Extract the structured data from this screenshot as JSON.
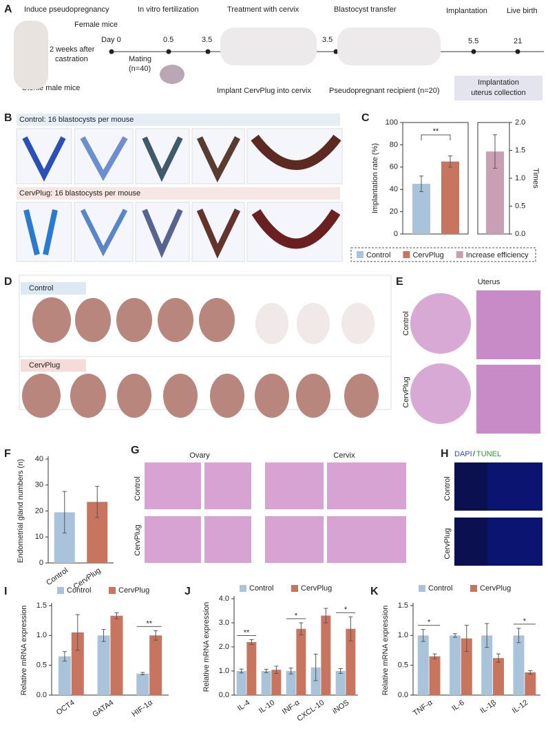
{
  "panel_labels": [
    "A",
    "B",
    "C",
    "D",
    "E",
    "F",
    "G",
    "H",
    "I",
    "J",
    "K"
  ],
  "panel_a": {
    "steps": [
      "Induce pseudopregnancy",
      "In vitro fertilization",
      "Treatment with cervix",
      "Blastocyst transfer",
      "Implantation",
      "Live birth"
    ],
    "female": "Female mice",
    "day": "Day 0",
    "castration": [
      "2 weeks after",
      "castration"
    ],
    "male": "Sterile male mice",
    "mating": [
      "Mating",
      "(n=40)"
    ],
    "days": [
      "0.5",
      "3.5",
      "3.5",
      "5.5",
      "21"
    ],
    "implant": "Implant CervPlug into cervix",
    "recipient": "Pseudopregnant recipient (n=20)",
    "collection": [
      "Implantation",
      "uterus collection"
    ]
  },
  "panel_b": {
    "control": "Control: 16 blastocysts per mouse",
    "cervplug": "CervPlug: 16 blastocysts per mouse"
  },
  "panel_d": {
    "control": "Control",
    "cervplug": "CervPlug"
  },
  "panel_e": {
    "title": "Uterus",
    "rows": [
      "Control",
      "CervPlug"
    ]
  },
  "panel_g": {
    "ovary": "Ovary",
    "cervix": "Cervix",
    "rows": [
      "Control",
      "CervPlug"
    ]
  },
  "panel_h": {
    "dapi": "DAPI",
    "sep": "/",
    "tunel": "TUNEL",
    "rows": [
      "Control",
      "CervPlug"
    ]
  },
  "chart_data": [
    {
      "type": "bar",
      "y_label": "Implantation rate (%)",
      "y2_label": "Times",
      "ylim": [
        0,
        100
      ],
      "yticks": [
        0,
        20,
        40,
        60,
        80,
        100
      ],
      "y2lim": [
        0,
        2
      ],
      "y2ticks": [
        {
          "value": 0,
          "label": "0.0"
        },
        {
          "value": 0.5,
          "label": "0.5"
        },
        {
          "value": 1,
          "label": "1.0"
        },
        {
          "value": 1.5,
          "label": "1.5"
        },
        {
          "value": 2,
          "label": "2.0"
        }
      ],
      "series": [
        {
          "name": "Control",
          "color": "#a9c4da",
          "values": [
            45
          ],
          "errors": [
            7
          ]
        },
        {
          "name": "CervPlug",
          "color": "#c87560",
          "values": [
            65
          ],
          "errors": [
            5
          ]
        },
        {
          "name": "Increase efficiency",
          "color": "#c9a0b3",
          "values": [
            1.48
          ],
          "errors": [
            0.3
          ],
          "axis": "y2"
        }
      ],
      "significance": [
        {
          "label": "**",
          "series": [
            0,
            1
          ]
        }
      ]
    },
    {
      "type": "bar",
      "y_label": "Endometrial gland numbers (n)",
      "categories": [
        "Control",
        "CervPlug"
      ],
      "ylim": [
        0,
        40
      ],
      "yticks": [
        0,
        10,
        20,
        30,
        40
      ],
      "series": [
        {
          "colors": [
            "#a9c4da",
            "#c87560"
          ],
          "values": [
            19.5,
            23.5
          ],
          "errors": [
            8,
            6
          ]
        }
      ]
    },
    {
      "type": "bar",
      "y_label": "Relative mRNA expression",
      "categories": [
        "OCT4",
        "GATA4",
        "HIF-1α"
      ],
      "ylim": [
        0,
        1.5
      ],
      "yticks": [
        {
          "value": 0,
          "label": "0.0"
        },
        {
          "value": 0.5,
          "label": "0.5"
        },
        {
          "value": 1,
          "label": "1.0"
        },
        {
          "value": 1.5,
          "label": "1.5"
        }
      ],
      "series": [
        {
          "name": "Control",
          "color": "#a9c4da",
          "values": [
            0.65,
            1.0,
            0.36
          ],
          "errors": [
            0.08,
            0.1,
            0.02
          ]
        },
        {
          "name": "CervPlug",
          "color": "#c87560",
          "values": [
            1.05,
            1.33,
            1.0
          ],
          "errors": [
            0.3,
            0.05,
            0.08
          ]
        }
      ],
      "significance": [
        {
          "label": "**",
          "category": 2
        }
      ]
    },
    {
      "type": "bar",
      "y_label": "Relative mRNA expression",
      "categories": [
        "IL-4",
        "IL-10",
        "INF-α",
        "CXCL-10",
        "iNOS"
      ],
      "ylim": [
        0,
        4
      ],
      "yticks": [
        {
          "value": 0,
          "label": "0.0"
        },
        {
          "value": 1,
          "label": "1.0"
        },
        {
          "value": 2,
          "label": "2.0"
        },
        {
          "value": 3,
          "label": "3.0"
        },
        {
          "value": 4,
          "label": "4.0"
        }
      ],
      "series": [
        {
          "name": "Control",
          "color": "#a9c4da",
          "values": [
            1.0,
            1.0,
            1.0,
            1.15,
            1.0
          ],
          "errors": [
            0.08,
            0.07,
            0.12,
            0.55,
            0.1
          ]
        },
        {
          "name": "CervPlug",
          "color": "#c87560",
          "values": [
            2.2,
            1.05,
            2.75,
            3.3,
            2.75
          ],
          "errors": [
            0.1,
            0.15,
            0.25,
            0.3,
            0.5
          ]
        }
      ],
      "significance": [
        {
          "label": "**",
          "category": 0
        },
        {
          "label": "*",
          "category": 2
        },
        {
          "label": "*",
          "category": 4
        }
      ]
    },
    {
      "type": "bar",
      "y_label": "Relative mRNA expression",
      "categories": [
        "TNF-α",
        "IL-6",
        "IL-1β",
        "IL-12"
      ],
      "ylim": [
        0,
        1.5
      ],
      "yticks": [
        {
          "value": 0,
          "label": "0.0"
        },
        {
          "value": 0.5,
          "label": "0.5"
        },
        {
          "value": 1,
          "label": "1.0"
        },
        {
          "value": 1.5,
          "label": "1.5"
        }
      ],
      "series": [
        {
          "name": "Control",
          "color": "#a9c4da",
          "values": [
            1.0,
            1.0,
            1.0,
            1.0
          ],
          "errors": [
            0.1,
            0.03,
            0.2,
            0.12
          ]
        },
        {
          "name": "CervPlug",
          "color": "#c87560",
          "values": [
            0.65,
            0.95,
            0.62,
            0.38
          ],
          "errors": [
            0.04,
            0.22,
            0.07,
            0.03
          ]
        }
      ],
      "significance": [
        {
          "label": "*",
          "category": 0
        },
        {
          "label": "*",
          "category": 3
        }
      ]
    }
  ]
}
